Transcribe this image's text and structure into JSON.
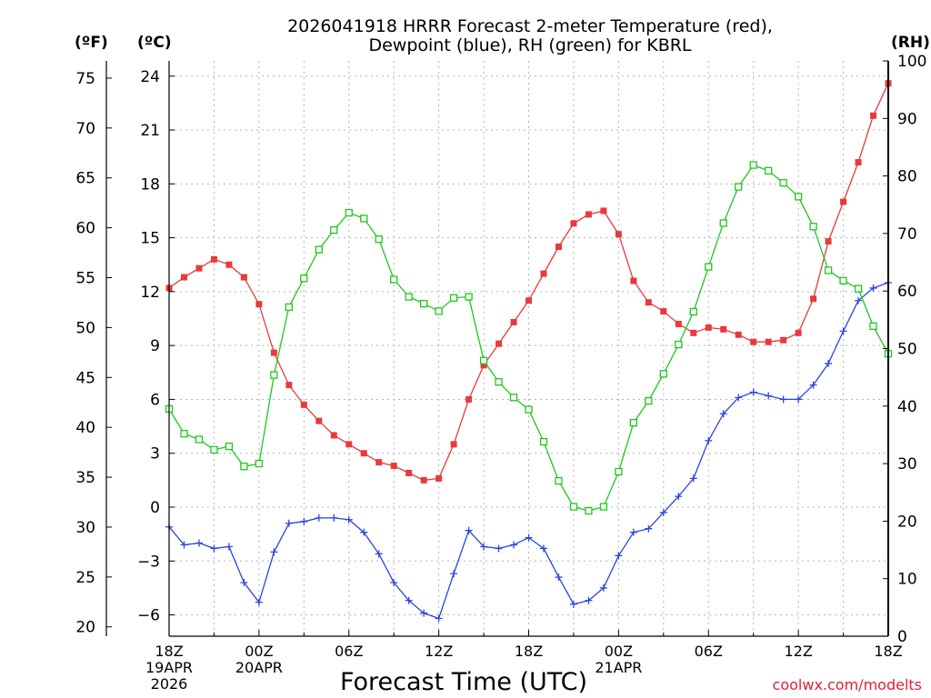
{
  "chart_data": {
    "type": "line",
    "title_lines": [
      "2026041918 HRRR Forecast 2-meter Temperature (red),",
      "Dewpoint (blue), RH (green) for KBRL"
    ],
    "units": {
      "fahrenheit": "(ºF)",
      "celsius": "(ºC)",
      "rh": "(RH)"
    },
    "xlabel": "Forecast Time (UTC)",
    "credit": "coolwx.com/modelts",
    "x_hours_range": [
      0,
      48
    ],
    "celsius_range": [
      -7,
      24.8
    ],
    "rh_range": [
      0,
      100
    ],
    "fahrenheit_ticks": [
      20,
      25,
      30,
      35,
      40,
      45,
      50,
      55,
      60,
      65,
      70,
      75
    ],
    "celsius_ticks": [
      "24",
      "21",
      "18",
      "15",
      "12",
      "9",
      "6",
      "3",
      "0",
      "−3",
      "−6"
    ],
    "celsius_tick_values": [
      24,
      21,
      18,
      15,
      12,
      9,
      6,
      3,
      0,
      -3,
      -6
    ],
    "rh_ticks": [
      100,
      90,
      80,
      70,
      60,
      50,
      40,
      30,
      20,
      10,
      0
    ],
    "x_ticks": [
      {
        "hour": 0,
        "lines": [
          "18Z",
          "19APR",
          "2026"
        ]
      },
      {
        "hour": 6,
        "lines": [
          "00Z",
          "20APR"
        ]
      },
      {
        "hour": 12,
        "lines": [
          "06Z"
        ]
      },
      {
        "hour": 18,
        "lines": [
          "12Z"
        ]
      },
      {
        "hour": 24,
        "lines": [
          "18Z"
        ]
      },
      {
        "hour": 30,
        "lines": [
          "00Z",
          "21APR"
        ]
      },
      {
        "hour": 36,
        "lines": [
          "06Z"
        ]
      },
      {
        "hour": 42,
        "lines": [
          "12Z"
        ]
      },
      {
        "hour": 48,
        "lines": [
          "18Z"
        ]
      }
    ],
    "series": [
      {
        "name": "2-meter Temperature",
        "color": "#e83a3a",
        "marker": "filled-square",
        "axis": "celsius",
        "values": [
          12.2,
          12.8,
          13.3,
          13.8,
          13.5,
          12.8,
          11.3,
          8.6,
          6.8,
          5.7,
          4.8,
          4.0,
          3.5,
          3.0,
          2.5,
          2.3,
          1.9,
          1.5,
          1.6,
          3.5,
          6.0,
          7.9,
          9.1,
          10.3,
          11.5,
          13.0,
          14.5,
          15.8,
          16.3,
          16.5,
          15.2,
          12.6,
          11.4,
          10.9,
          10.2,
          9.7,
          10.0,
          9.9,
          9.6,
          9.2,
          9.2,
          9.3,
          9.7,
          11.6,
          14.8,
          17.0,
          19.2,
          21.8,
          23.6
        ]
      },
      {
        "name": "Dewpoint",
        "color": "#2a44e0",
        "marker": "plus",
        "axis": "celsius",
        "values": [
          -1.1,
          -2.1,
          -2.0,
          -2.3,
          -2.2,
          -4.2,
          -5.3,
          -2.5,
          -0.9,
          -0.8,
          -0.6,
          -0.6,
          -0.7,
          -1.4,
          -2.6,
          -4.2,
          -5.2,
          -5.9,
          -6.2,
          -3.7,
          -1.3,
          -2.2,
          -2.3,
          -2.1,
          -1.7,
          -2.3,
          -3.9,
          -5.4,
          -5.2,
          -4.5,
          -2.7,
          -1.4,
          -1.2,
          -0.3,
          0.6,
          1.6,
          3.7,
          5.2,
          6.1,
          6.4,
          6.2,
          6.0,
          6.0,
          6.8,
          8.0,
          9.8,
          11.5,
          12.2,
          12.5
        ]
      },
      {
        "name": "RH",
        "color": "#1ec81e",
        "marker": "open-square",
        "axis": "rh",
        "values": [
          39.5,
          35.2,
          34.2,
          32.4,
          33.0,
          29.5,
          30.0,
          45.4,
          57.2,
          62.2,
          67.2,
          70.6,
          73.6,
          72.6,
          69.0,
          62.0,
          59.0,
          57.8,
          56.5,
          58.8,
          59.0,
          47.9,
          44.2,
          41.5,
          39.4,
          33.8,
          27.0,
          22.5,
          21.8,
          22.5,
          28.6,
          37.1,
          40.9,
          45.6,
          50.7,
          56.4,
          64.2,
          71.8,
          78.1,
          81.9,
          80.9,
          78.8,
          76.4,
          71.2,
          63.6,
          61.8,
          60.4,
          53.9,
          49.1
        ]
      }
    ]
  }
}
